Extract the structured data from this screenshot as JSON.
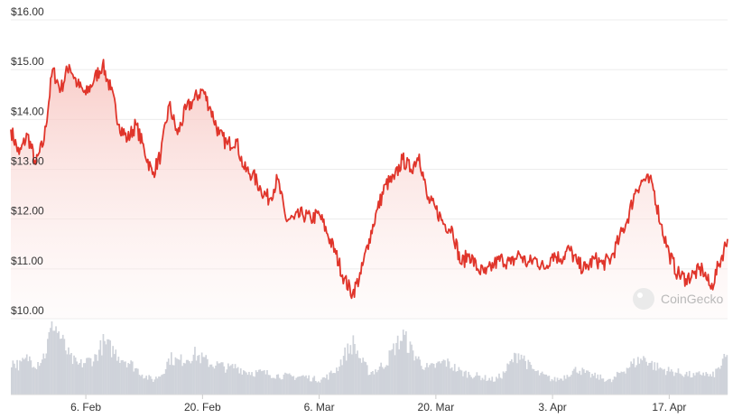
{
  "watermark": {
    "text": "CoinGecko"
  },
  "colors": {
    "line": "#e0352b",
    "area_top": "#f6c9c5",
    "volume": "#cfd3da",
    "grid": "#ececec"
  },
  "chart_data": {
    "type": "line",
    "ylim": [
      10,
      16
    ],
    "y_ticks": [
      {
        "value": 16,
        "label": "$16.00"
      },
      {
        "value": 15,
        "label": "$15.00"
      },
      {
        "value": 14,
        "label": "$14.00"
      },
      {
        "value": 13,
        "label": "$13.00"
      },
      {
        "value": 12,
        "label": "$12.00"
      },
      {
        "value": 11,
        "label": "$11.00"
      },
      {
        "value": 10,
        "label": "$10.00"
      }
    ],
    "x_range": [
      "2023-01-28",
      "2023-04-24"
    ],
    "x_ticks": [
      {
        "date": "2023-02-06",
        "label": "6. Feb"
      },
      {
        "date": "2023-02-20",
        "label": "20. Feb"
      },
      {
        "date": "2023-03-06",
        "label": "6. Mar"
      },
      {
        "date": "2023-03-20",
        "label": "20. Mar"
      },
      {
        "date": "2023-04-03",
        "label": "3. Apr"
      },
      {
        "date": "2023-04-17",
        "label": "17. Apr"
      }
    ],
    "series": [
      {
        "type": "line",
        "x": [
          "2023-01-28",
          "2023-01-29",
          "2023-01-30",
          "2023-01-31",
          "2023-02-01",
          "2023-02-02",
          "2023-02-03",
          "2023-02-04",
          "2023-02-05",
          "2023-02-06",
          "2023-02-07",
          "2023-02-08",
          "2023-02-09",
          "2023-02-10",
          "2023-02-11",
          "2023-02-12",
          "2023-02-13",
          "2023-02-14",
          "2023-02-15",
          "2023-02-16",
          "2023-02-17",
          "2023-02-18",
          "2023-02-19",
          "2023-02-20",
          "2023-02-21",
          "2023-02-22",
          "2023-02-23",
          "2023-02-24",
          "2023-02-25",
          "2023-02-26",
          "2023-02-27",
          "2023-02-28",
          "2023-03-01",
          "2023-03-02",
          "2023-03-03",
          "2023-03-04",
          "2023-03-05",
          "2023-03-06",
          "2023-03-07",
          "2023-03-08",
          "2023-03-09",
          "2023-03-10",
          "2023-03-11",
          "2023-03-12",
          "2023-03-13",
          "2023-03-14",
          "2023-03-15",
          "2023-03-16",
          "2023-03-17",
          "2023-03-18",
          "2023-03-19",
          "2023-03-20",
          "2023-03-21",
          "2023-03-22",
          "2023-03-23",
          "2023-03-24",
          "2023-03-25",
          "2023-03-26",
          "2023-03-27",
          "2023-03-28",
          "2023-03-29",
          "2023-03-30",
          "2023-03-31",
          "2023-04-01",
          "2023-04-02",
          "2023-04-03",
          "2023-04-04",
          "2023-04-05",
          "2023-04-06",
          "2023-04-07",
          "2023-04-08",
          "2023-04-09",
          "2023-04-10",
          "2023-04-11",
          "2023-04-12",
          "2023-04-13",
          "2023-04-14",
          "2023-04-15",
          "2023-04-16",
          "2023-04-17",
          "2023-04-18",
          "2023-04-19",
          "2023-04-20",
          "2023-04-21",
          "2023-04-22",
          "2023-04-23",
          "2023-04-24"
        ],
        "values": [
          13.8,
          13.3,
          13.7,
          13.1,
          13.6,
          15.0,
          14.6,
          15.1,
          14.7,
          14.5,
          14.8,
          15.1,
          14.6,
          13.9,
          13.6,
          13.9,
          13.4,
          12.9,
          13.3,
          14.3,
          13.7,
          14.2,
          14.4,
          14.6,
          14.2,
          13.7,
          13.5,
          13.6,
          13.0,
          12.9,
          12.6,
          12.4,
          12.8,
          12.0,
          12.0,
          12.1,
          12.0,
          12.1,
          11.7,
          11.3,
          10.8,
          10.5,
          10.9,
          11.6,
          12.2,
          12.7,
          12.8,
          13.2,
          13.0,
          13.3,
          12.4,
          12.2,
          11.9,
          11.8,
          11.1,
          11.3,
          11.0,
          10.9,
          11.1,
          11.2,
          11.1,
          11.3,
          11.1,
          11.2,
          11.0,
          11.3,
          11.2,
          11.4,
          11.1,
          11.0,
          11.2,
          11.1,
          11.2,
          11.6,
          12.0,
          12.6,
          12.8,
          12.7,
          11.9,
          11.3,
          10.9,
          10.8,
          10.9,
          11.0,
          10.6,
          11.1,
          11.6
        ]
      },
      {
        "type": "volume",
        "x": [
          "2023-01-28",
          "2023-01-29",
          "2023-01-30",
          "2023-01-31",
          "2023-02-01",
          "2023-02-02",
          "2023-02-03",
          "2023-02-04",
          "2023-02-05",
          "2023-02-06",
          "2023-02-07",
          "2023-02-08",
          "2023-02-09",
          "2023-02-10",
          "2023-02-11",
          "2023-02-12",
          "2023-02-13",
          "2023-02-14",
          "2023-02-15",
          "2023-02-16",
          "2023-02-17",
          "2023-02-18",
          "2023-02-19",
          "2023-02-20",
          "2023-02-21",
          "2023-02-22",
          "2023-02-23",
          "2023-02-24",
          "2023-02-25",
          "2023-02-26",
          "2023-02-27",
          "2023-02-28",
          "2023-03-01",
          "2023-03-02",
          "2023-03-03",
          "2023-03-04",
          "2023-03-05",
          "2023-03-06",
          "2023-03-07",
          "2023-03-08",
          "2023-03-09",
          "2023-03-10",
          "2023-03-11",
          "2023-03-12",
          "2023-03-13",
          "2023-03-14",
          "2023-03-15",
          "2023-03-16",
          "2023-03-17",
          "2023-03-18",
          "2023-03-19",
          "2023-03-20",
          "2023-03-21",
          "2023-03-22",
          "2023-03-23",
          "2023-03-24",
          "2023-03-25",
          "2023-03-26",
          "2023-03-27",
          "2023-03-28",
          "2023-03-29",
          "2023-03-30",
          "2023-03-31",
          "2023-04-01",
          "2023-04-02",
          "2023-04-03",
          "2023-04-04",
          "2023-04-05",
          "2023-04-06",
          "2023-04-07",
          "2023-04-08",
          "2023-04-09",
          "2023-04-10",
          "2023-04-11",
          "2023-04-12",
          "2023-04-13",
          "2023-04-14",
          "2023-04-15",
          "2023-04-16",
          "2023-04-17",
          "2023-04-18",
          "2023-04-19",
          "2023-04-20",
          "2023-04-21",
          "2023-04-22",
          "2023-04-23",
          "2023-04-24"
        ],
        "values": [
          0.45,
          0.4,
          0.5,
          0.42,
          0.55,
          1.0,
          0.75,
          0.5,
          0.4,
          0.45,
          0.5,
          0.7,
          0.62,
          0.52,
          0.45,
          0.35,
          0.25,
          0.2,
          0.28,
          0.5,
          0.45,
          0.5,
          0.55,
          0.48,
          0.42,
          0.4,
          0.36,
          0.38,
          0.32,
          0.3,
          0.3,
          0.28,
          0.26,
          0.25,
          0.24,
          0.25,
          0.22,
          0.2,
          0.25,
          0.35,
          0.55,
          0.7,
          0.45,
          0.3,
          0.35,
          0.45,
          0.65,
          0.8,
          0.6,
          0.45,
          0.35,
          0.4,
          0.45,
          0.38,
          0.3,
          0.28,
          0.25,
          0.22,
          0.2,
          0.28,
          0.45,
          0.58,
          0.4,
          0.3,
          0.25,
          0.2,
          0.22,
          0.3,
          0.35,
          0.28,
          0.25,
          0.22,
          0.18,
          0.3,
          0.38,
          0.45,
          0.5,
          0.4,
          0.35,
          0.32,
          0.3,
          0.28,
          0.25,
          0.3,
          0.24,
          0.38,
          0.55
        ]
      }
    ]
  }
}
